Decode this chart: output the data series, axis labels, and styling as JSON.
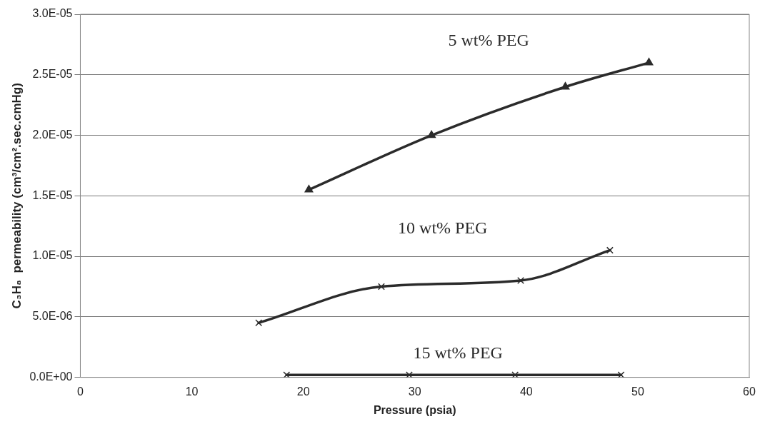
{
  "chart_data": {
    "type": "line",
    "xlabel": "Pressure (psia)",
    "ylabel": "C₃H₈  permeability (cm³/cm².sec.cmHg)",
    "xlim": [
      0,
      60
    ],
    "xticks": [
      0,
      10,
      20,
      30,
      40,
      50,
      60
    ],
    "ylim": [
      0,
      3e-05
    ],
    "yticks": [
      {
        "value": 0,
        "label": "0.0E+00"
      },
      {
        "value": 5e-06,
        "label": "5.0E-06"
      },
      {
        "value": 1e-05,
        "label": "1.0E-05"
      },
      {
        "value": 1.5e-05,
        "label": "1.5E-05"
      },
      {
        "value": 2e-05,
        "label": "2.0E-05"
      },
      {
        "value": 2.5e-05,
        "label": "2.5E-05"
      },
      {
        "value": 3e-05,
        "label": "3.0E-05"
      }
    ],
    "grid": "y",
    "legend": false,
    "line_style": "solid",
    "series": [
      {
        "name": "5 wt% PEG",
        "color": "#2b2b2b",
        "marker": "triangle",
        "x": [
          20.5,
          31.5,
          43.5,
          51
        ],
        "values": [
          1.55e-05,
          2e-05,
          2.4e-05,
          2.6e-05
        ]
      },
      {
        "name": "10 wt% PEG",
        "color": "#2b2b2b",
        "marker": "cross",
        "x": [
          16,
          27,
          39.5,
          47.5
        ],
        "values": [
          4.5e-06,
          7.5e-06,
          8e-06,
          1.05e-05
        ]
      },
      {
        "name": "15 wt% PEG",
        "color": "#2b2b2b",
        "marker": "cross",
        "x": [
          18.5,
          29.5,
          39,
          48.5
        ],
        "values": [
          2e-07,
          2e-07,
          2e-07,
          2e-07
        ]
      }
    ]
  }
}
